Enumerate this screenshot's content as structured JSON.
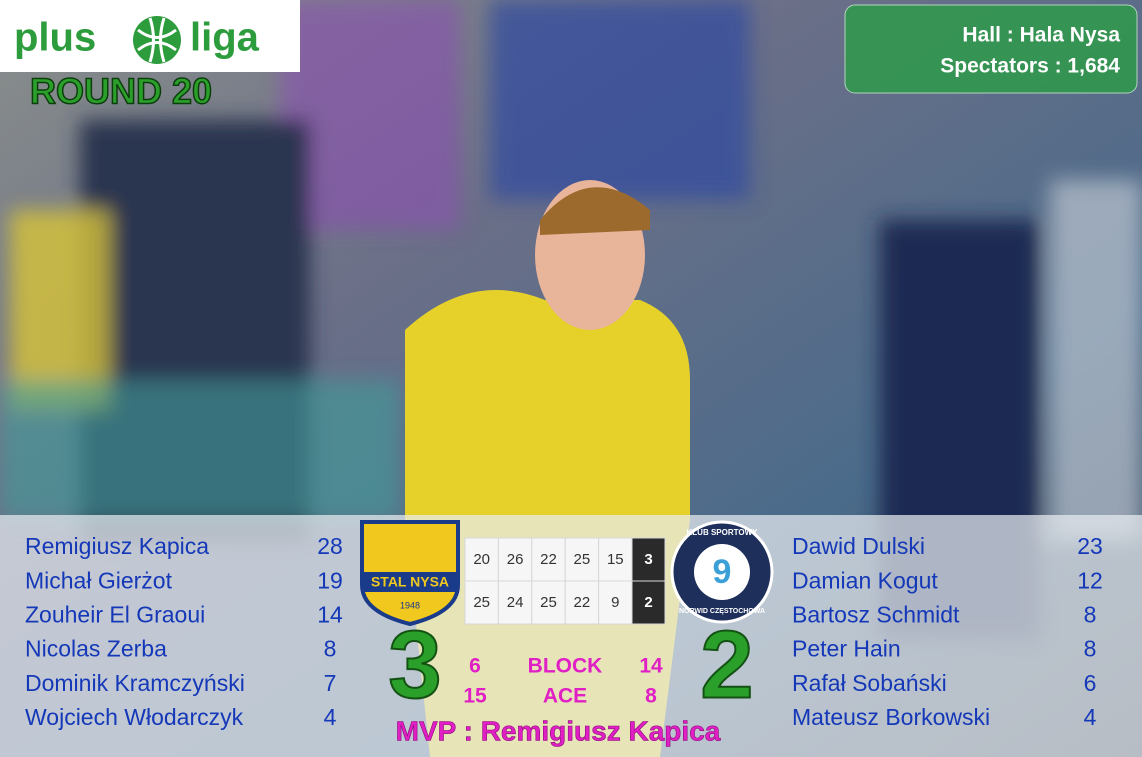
{
  "header": {
    "logo_left": "plus",
    "logo_right": "liga",
    "round": "ROUND 20"
  },
  "venue": {
    "hall": "Hall : Hala Nysa",
    "spectators": "Spectators : 1,684"
  },
  "home": {
    "logo_name": "STAL NYSA",
    "logo_year": "1948",
    "score": 3,
    "players": [
      {
        "name": "Remigiusz Kapica",
        "points": 28
      },
      {
        "name": "Michał Gierżot",
        "points": 19
      },
      {
        "name": "Zouheir El Graoui",
        "points": 14
      },
      {
        "name": "Nicolas Zerba",
        "points": 8
      },
      {
        "name": "Dominik Kramczyński",
        "points": 7
      },
      {
        "name": "Wojciech Włodarczyk",
        "points": 4
      }
    ]
  },
  "away": {
    "logo_top": "KLUB SPORTOWY",
    "logo_bottom": "NORWID CZĘSTOCHOWA",
    "logo_number": "9",
    "score": 2,
    "players": [
      {
        "name": "Dawid Dulski",
        "points": 23
      },
      {
        "name": "Damian Kogut",
        "points": 12
      },
      {
        "name": "Bartosz Schmidt",
        "points": 8
      },
      {
        "name": "Peter Hain",
        "points": 8
      },
      {
        "name": "Rafał Sobański",
        "points": 6
      },
      {
        "name": "Mateusz Borkowski",
        "points": 4
      }
    ]
  },
  "set_table": {
    "rows": [
      {
        "sets": [
          20,
          26,
          22,
          25,
          15
        ],
        "won": 3
      },
      {
        "sets": [
          25,
          24,
          25,
          22,
          9
        ],
        "won": 2
      }
    ]
  },
  "stats": [
    {
      "label": "BLOCK",
      "home": 6,
      "away": 14
    },
    {
      "label": "ACE",
      "home": 15,
      "away": 8
    }
  ],
  "mvp": "MVP : Remigiusz Kapica"
}
